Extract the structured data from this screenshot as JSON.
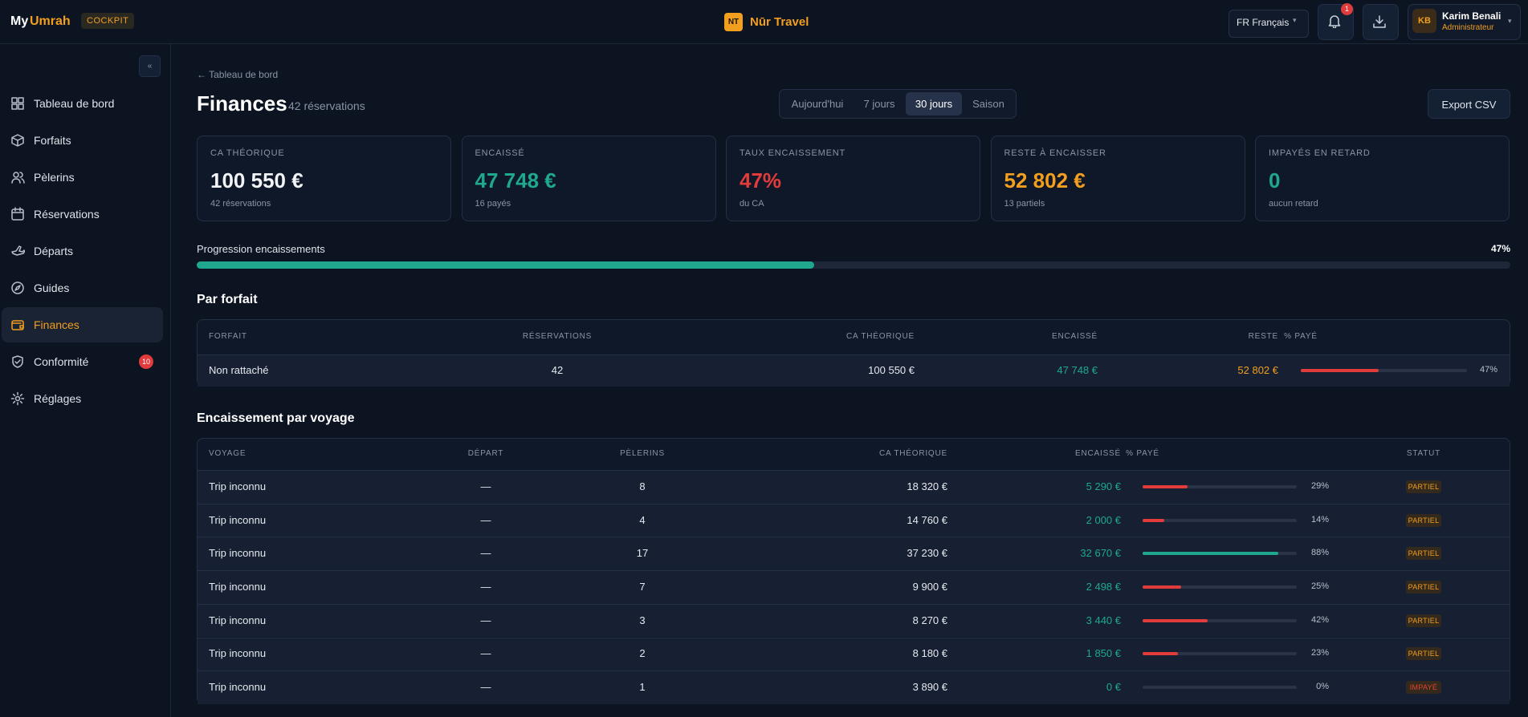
{
  "header": {
    "logo_my": "My",
    "logo_umrah": "Umrah",
    "badge": "COCKPIT",
    "agency_initials": "NT",
    "agency_name": "Nūr Travel",
    "language": "FR Français",
    "notifications": "1",
    "user_initials": "KB",
    "user_name": "Karim Benali",
    "user_role": "Administrateur"
  },
  "sidebar": {
    "items": [
      {
        "label": "Tableau de bord"
      },
      {
        "label": "Forfaits"
      },
      {
        "label": "Pèlerins"
      },
      {
        "label": "Réservations"
      },
      {
        "label": "Départs"
      },
      {
        "label": "Guides"
      },
      {
        "label": "Finances",
        "active": true
      },
      {
        "label": "Conformité",
        "badge": "10"
      },
      {
        "label": "Réglages"
      }
    ]
  },
  "page": {
    "breadcrumb": "← Tableau de bord",
    "title": "Finances",
    "subtitle": "42 réservations",
    "periods": [
      "Aujourd'hui",
      "7 jours",
      "30 jours",
      "Saison"
    ],
    "active_period": 2,
    "export": "Export CSV"
  },
  "kpis": [
    {
      "label": "CA THÉORIQUE",
      "value": "100 550 €",
      "note": "42 réservations",
      "color": "#f1f3f6"
    },
    {
      "label": "ENCAISSÉ",
      "value": "47 748 €",
      "note": "16 payés",
      "color": "#1fa88f"
    },
    {
      "label": "TAUX ENCAISSEMENT",
      "value": "47%",
      "note": "du CA",
      "color": "#e23b3b"
    },
    {
      "label": "RESTE À ENCAISSER",
      "value": "52 802 €",
      "note": "13 partiels",
      "color": "#f29e1f"
    },
    {
      "label": "IMPAYÉS EN RETARD",
      "value": "0",
      "note": "aucun retard",
      "color": "#1fa88f"
    }
  ],
  "progress": {
    "label": "Progression encaissements",
    "value": 47,
    "value_label": "47%",
    "color": "#1fa88f"
  },
  "by_package": {
    "title": "Par forfait",
    "columns": [
      "FORFAIT",
      "RÉSERVATIONS",
      "CA THÉORIQUE",
      "ENCAISSÉ",
      "RESTE",
      "% PAYÉ"
    ],
    "rows": [
      {
        "name": "Non rattaché",
        "reservations": "42",
        "ca": "100 550 €",
        "paid": "47 748 €",
        "rest": "52 802 €",
        "pct": 47,
        "pct_label": "47%",
        "color": "#e23b3b"
      }
    ]
  },
  "by_trip": {
    "title": "Encaissement par voyage",
    "columns": [
      "VOYAGE",
      "DÉPART",
      "PÈLERINS",
      "CA THÉORIQUE",
      "ENCAISSÉ",
      "% PAYÉ",
      "STATUT"
    ],
    "rows": [
      {
        "name": "Trip inconnu",
        "depart": "—",
        "pilgrims": "8",
        "ca": "18 320 €",
        "paid": "5 290 €",
        "pct": 29,
        "pct_label": "29%",
        "color": "#e23b3b",
        "status": "PARTIEL",
        "status_color": "#f29e1f"
      },
      {
        "name": "Trip inconnu",
        "depart": "—",
        "pilgrims": "4",
        "ca": "14 760 €",
        "paid": "2 000 €",
        "pct": 14,
        "pct_label": "14%",
        "color": "#e23b3b",
        "status": "PARTIEL",
        "status_color": "#f29e1f"
      },
      {
        "name": "Trip inconnu",
        "depart": "—",
        "pilgrims": "17",
        "ca": "37 230 €",
        "paid": "32 670 €",
        "pct": 88,
        "pct_label": "88%",
        "color": "#1fa88f",
        "status": "PARTIEL",
        "status_color": "#f29e1f"
      },
      {
        "name": "Trip inconnu",
        "depart": "—",
        "pilgrims": "7",
        "ca": "9 900 €",
        "paid": "2 498 €",
        "pct": 25,
        "pct_label": "25%",
        "color": "#e23b3b",
        "status": "PARTIEL",
        "status_color": "#f29e1f"
      },
      {
        "name": "Trip inconnu",
        "depart": "—",
        "pilgrims": "3",
        "ca": "8 270 €",
        "paid": "3 440 €",
        "pct": 42,
        "pct_label": "42%",
        "color": "#e23b3b",
        "status": "PARTIEL",
        "status_color": "#f29e1f"
      },
      {
        "name": "Trip inconnu",
        "depart": "—",
        "pilgrims": "2",
        "ca": "8 180 €",
        "paid": "1 850 €",
        "pct": 23,
        "pct_label": "23%",
        "color": "#e23b3b",
        "status": "PARTIEL",
        "status_color": "#f29e1f"
      },
      {
        "name": "Trip inconnu",
        "depart": "—",
        "pilgrims": "1",
        "ca": "3 890 €",
        "paid": "0 €",
        "pct": 0,
        "pct_label": "0%",
        "color": "#e23b3b",
        "status": "IMPAYÉ",
        "status_color": "#e2452f"
      }
    ]
  }
}
